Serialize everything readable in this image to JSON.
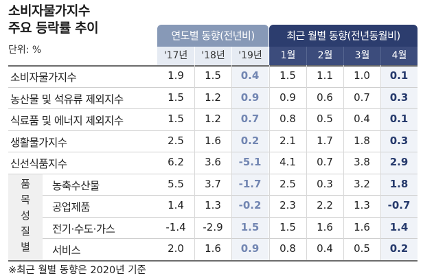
{
  "title_line1": "소비자물가지수",
  "title_line2": "주요 등락률 추이",
  "unit": "단위: %",
  "footnote": "※최근 월별 동향은 2020년 기준",
  "chart_data": {
    "type": "table",
    "column_groups": [
      {
        "label": "연도별 동향(전년비)",
        "columns": [
          "'17년",
          "'18년",
          "'19년"
        ]
      },
      {
        "label": "최근 월별 동향(전년동월비)",
        "columns": [
          "1월",
          "2월",
          "3월",
          "4월"
        ]
      }
    ],
    "row_group_label": "품\n목\n성\n질\n별",
    "rows": [
      {
        "label": "소비자물가지수",
        "values": [
          "1.9",
          "1.5",
          "0.4",
          "1.5",
          "1.1",
          "1.0",
          "0.1"
        ]
      },
      {
        "label": "농산물 및 석유류 제외지수",
        "values": [
          "1.5",
          "1.2",
          "0.9",
          "0.9",
          "0.6",
          "0.7",
          "0.3"
        ]
      },
      {
        "label": "식료품 및 에너지 제외지수",
        "values": [
          "1.5",
          "1.2",
          "0.7",
          "0.8",
          "0.5",
          "0.4",
          "0.1"
        ]
      },
      {
        "label": "생활물가지수",
        "values": [
          "2.5",
          "1.6",
          "0.2",
          "2.1",
          "1.7",
          "1.8",
          "0.3"
        ]
      },
      {
        "label": "신선식품지수",
        "values": [
          "6.2",
          "3.6",
          "-5.1",
          "4.1",
          "0.7",
          "3.8",
          "2.9"
        ]
      },
      {
        "label": "농축수산물",
        "values": [
          "5.5",
          "3.7",
          "-1.7",
          "2.5",
          "0.3",
          "3.2",
          "1.8"
        ]
      },
      {
        "label": "공업제품",
        "values": [
          "1.4",
          "1.3",
          "-0.2",
          "2.3",
          "2.2",
          "1.3",
          "-0.7"
        ]
      },
      {
        "label": "전기·수도·가스",
        "values": [
          "-1.4",
          "-2.9",
          "1.5",
          "1.5",
          "1.6",
          "1.6",
          "1.4"
        ]
      },
      {
        "label": "서비스",
        "values": [
          "2.0",
          "1.6",
          "0.9",
          "0.8",
          "0.4",
          "0.5",
          "0.2"
        ]
      }
    ],
    "colors": {
      "year_header": "#8799b7",
      "month_header": "#2c3d6e",
      "year_highlight_text": "#7286b2",
      "month_highlight_text": "#263a6c"
    }
  }
}
